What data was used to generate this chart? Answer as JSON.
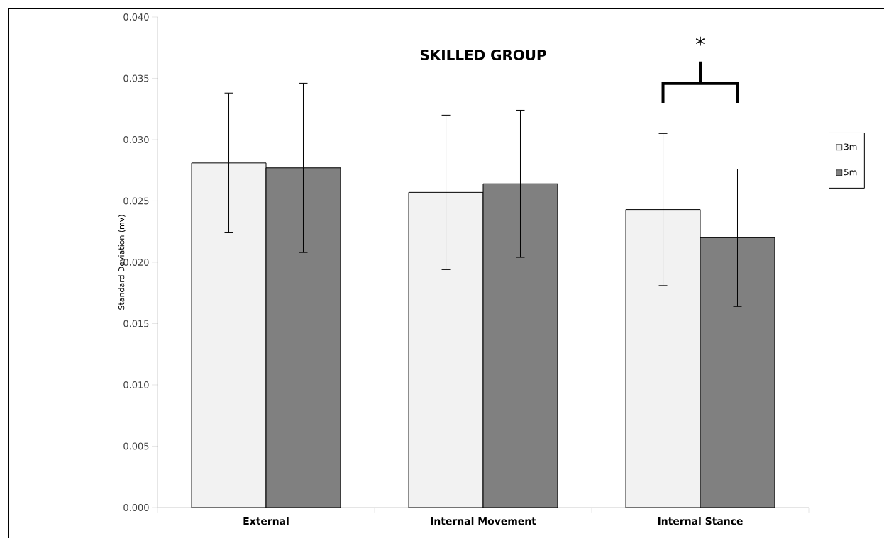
{
  "chart_data": {
    "type": "bar",
    "title": "SKILLED GROUP",
    "ylabel": "Standard Deviation (mv)",
    "categories": [
      "External",
      "Internal Movement",
      "Internal Stance"
    ],
    "series": [
      {
        "name": "3m",
        "color": "#f2f2f2",
        "values": [
          0.0281,
          0.0257,
          0.0243
        ],
        "errors": [
          0.0057,
          0.0063,
          0.0062
        ]
      },
      {
        "name": "5m",
        "color": "#808080",
        "values": [
          0.0277,
          0.0264,
          0.022
        ],
        "errors": [
          0.0069,
          0.006,
          0.0056
        ]
      }
    ],
    "ylim": [
      0,
      0.04
    ],
    "yticks": [
      {
        "value": 0,
        "label": "0.000"
      },
      {
        "value": 0.005,
        "label": "0.005"
      },
      {
        "value": 0.01,
        "label": "0.010"
      },
      {
        "value": 0.015,
        "label": "0.015"
      },
      {
        "value": 0.02,
        "label": "0.020"
      },
      {
        "value": 0.025,
        "label": "0.025"
      },
      {
        "value": 0.03,
        "label": "0.030"
      },
      {
        "value": 0.035,
        "label": "0.035"
      },
      {
        "value": 0.04,
        "label": "0.040"
      }
    ],
    "grid": false,
    "legend": "right",
    "annotations": [
      "*"
    ]
  }
}
